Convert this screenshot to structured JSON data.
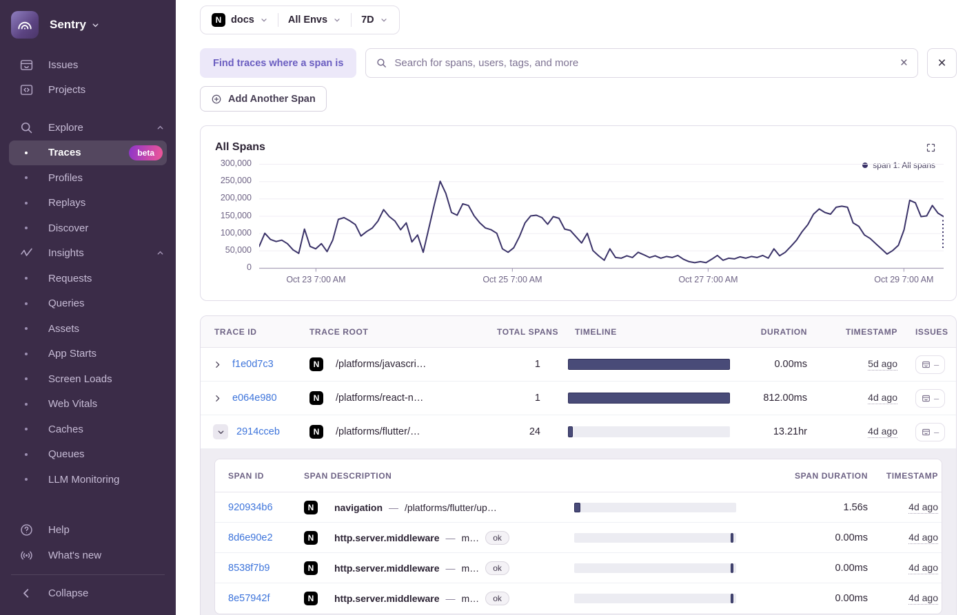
{
  "brand": {
    "name": "Sentry"
  },
  "icons": {
    "close": "×",
    "clear": "×",
    "issues_empty": "–"
  },
  "colors": {
    "sidebar_bg": "#3b2c48",
    "accent_purple": "#6a5dc0",
    "link_blue": "#3d74db",
    "chart_line": "#3a3268",
    "timeline_bar": "#494b78",
    "beta_gradient_start": "#8d35c9",
    "beta_gradient_end": "#f05697"
  },
  "sidebar": {
    "primary": [
      {
        "label": "Issues"
      },
      {
        "label": "Projects"
      }
    ],
    "explore": {
      "label": "Explore",
      "items": [
        {
          "label": "Traces",
          "badge": "beta",
          "active": true
        },
        {
          "label": "Profiles"
        },
        {
          "label": "Replays"
        },
        {
          "label": "Discover"
        }
      ]
    },
    "insights": {
      "label": "Insights",
      "items": [
        {
          "label": "Requests"
        },
        {
          "label": "Queries"
        },
        {
          "label": "Assets"
        },
        {
          "label": "App Starts"
        },
        {
          "label": "Screen Loads"
        },
        {
          "label": "Web Vitals"
        },
        {
          "label": "Caches"
        },
        {
          "label": "Queues"
        },
        {
          "label": "LLM Monitoring"
        }
      ]
    },
    "footer": [
      {
        "label": "Help"
      },
      {
        "label": "What's new"
      }
    ],
    "collapse": "Collapse"
  },
  "topbar": {
    "project": "docs",
    "project_icon_letter": "N",
    "environment": "All Envs",
    "date_range": "7D"
  },
  "filters": {
    "span_condition_label": "Find traces where a span is",
    "search_placeholder": "Search for spans, users, tags, and more",
    "add_span_label": "Add Another Span"
  },
  "chart_data": {
    "type": "line",
    "title": "All Spans",
    "grid": "horizontal",
    "legend_position": "top-right",
    "ylim": [
      0,
      300000
    ],
    "y_ticks": [
      {
        "value": 0,
        "label": "0"
      },
      {
        "value": 50000,
        "label": "50,000"
      },
      {
        "value": 100000,
        "label": "100,000"
      },
      {
        "value": 150000,
        "label": "150,000"
      },
      {
        "value": 200000,
        "label": "200,000"
      },
      {
        "value": 250000,
        "label": "250,000"
      },
      {
        "value": 300000,
        "label": "300,000"
      }
    ],
    "x_ticks": [
      {
        "position": 0.083,
        "label": "Oct 23 7:00 AM"
      },
      {
        "position": 0.37,
        "label": "Oct 25 7:00 AM"
      },
      {
        "position": 0.656,
        "label": "Oct 27 7:00 AM"
      },
      {
        "position": 0.942,
        "label": "Oct 29 7:00 AM"
      }
    ],
    "incomplete_end_marker": true,
    "series": [
      {
        "name": "span 1: All spans",
        "color": "#3a3268",
        "values": [
          62000,
          100000,
          82000,
          76000,
          80000,
          70000,
          52000,
          42000,
          112000,
          62000,
          55000,
          70000,
          47000,
          80000,
          140000,
          145000,
          136000,
          125000,
          92000,
          105000,
          115000,
          135000,
          168000,
          148000,
          135000,
          110000,
          130000,
          75000,
          95000,
          45000,
          115000,
          185000,
          250000,
          215000,
          160000,
          152000,
          185000,
          180000,
          150000,
          130000,
          115000,
          110000,
          100000,
          55000,
          45000,
          58000,
          90000,
          130000,
          150000,
          152000,
          145000,
          126000,
          148000,
          143000,
          112000,
          108000,
          90000,
          72000,
          100000,
          50000,
          35000,
          22000,
          55000,
          30000,
          28000,
          35000,
          30000,
          45000,
          38000,
          30000,
          35000,
          28000,
          33000,
          30000,
          36000,
          25000,
          18000,
          15000,
          18000,
          15000,
          25000,
          36000,
          22000,
          28000,
          26000,
          32000,
          28000,
          33000,
          30000,
          36000,
          28000,
          55000,
          35000,
          45000,
          62000,
          80000,
          105000,
          125000,
          155000,
          170000,
          160000,
          155000,
          175000,
          178000,
          175000,
          130000,
          120000,
          95000,
          85000,
          70000,
          55000,
          40000,
          50000,
          65000,
          110000,
          195000,
          188000,
          148000,
          150000,
          180000,
          158000,
          148000
        ]
      }
    ]
  },
  "traces_table": {
    "project_icon_letter": "N",
    "headers": {
      "trace_id": "TRACE ID",
      "trace_root": "TRACE ROOT",
      "total_spans": "TOTAL SPANS",
      "timeline": "TIMELINE",
      "duration": "DURATION",
      "timestamp": "TIMESTAMP",
      "issues": "ISSUES"
    },
    "rows": [
      {
        "trace_id": "f1e0d7c3",
        "trace_root": "/platforms/javascri…",
        "total_spans": "1",
        "duration": "0.00ms",
        "timestamp": "5d ago",
        "expanded": false,
        "timeline": {
          "left_pct": 0,
          "width_pct": 100
        }
      },
      {
        "trace_id": "e064e980",
        "trace_root": "/platforms/react-n…",
        "total_spans": "1",
        "duration": "812.00ms",
        "timestamp": "4d ago",
        "expanded": false,
        "timeline": {
          "left_pct": 0,
          "width_pct": 100
        }
      },
      {
        "trace_id": "2914cceb",
        "trace_root": "/platforms/flutter/…",
        "total_spans": "24",
        "duration": "13.21hr",
        "timestamp": "4d ago",
        "expanded": true,
        "timeline": {
          "left_pct": 0,
          "width_pct": 3
        }
      }
    ]
  },
  "spans_table": {
    "project_icon_letter": "N",
    "separator": "—",
    "headers": {
      "span_id": "SPAN ID",
      "span_description": "SPAN DESCRIPTION",
      "span_duration": "SPAN DURATION",
      "timestamp": "TIMESTAMP"
    },
    "rows": [
      {
        "span_id": "920934b6",
        "op": "navigation",
        "description": "/platforms/flutter/up…",
        "status": "",
        "duration": "1.56s",
        "timestamp": "4d ago",
        "timeline": {
          "left_pct": 0,
          "width_pct": 4
        }
      },
      {
        "span_id": "8d6e90e2",
        "op": "http.server.middleware",
        "description": "m…",
        "status": "ok",
        "duration": "0.00ms",
        "timestamp": "4d ago",
        "timeline": {
          "left_pct": 96.5,
          "width_pct": 1.6
        }
      },
      {
        "span_id": "8538f7b9",
        "op": "http.server.middleware",
        "description": "m…",
        "status": "ok",
        "duration": "0.00ms",
        "timestamp": "4d ago",
        "timeline": {
          "left_pct": 96.5,
          "width_pct": 1.6
        }
      },
      {
        "span_id": "8e57942f",
        "op": "http.server.middleware",
        "description": "m…",
        "status": "ok",
        "duration": "0.00ms",
        "timestamp": "4d ago",
        "timeline": {
          "left_pct": 96.5,
          "width_pct": 1.6
        }
      }
    ]
  }
}
